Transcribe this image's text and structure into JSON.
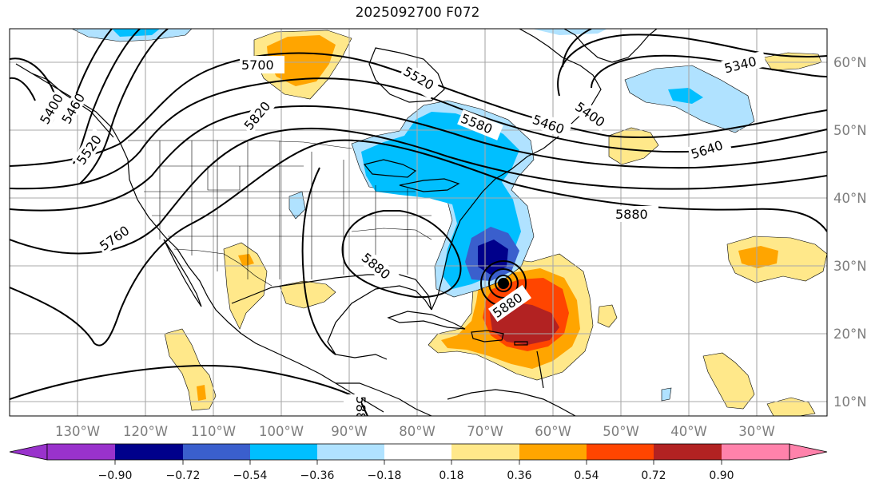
{
  "title": "2025092700 F072",
  "map": {
    "lon_labels": [
      "130°W",
      "120°W",
      "110°W",
      "100°W",
      "90°W",
      "80°W",
      "70°W",
      "60°W",
      "50°W",
      "40°W",
      "30°W"
    ],
    "lat_labels": [
      "60°N",
      "50°N",
      "40°N",
      "30°N",
      "20°N",
      "10°N"
    ],
    "contour_labels": [
      "5700",
      "5520",
      "5340",
      "5400",
      "5460",
      "5580",
      "5640",
      "5820",
      "5880",
      "5880",
      "5760",
      "5880",
      "5400",
      "5460",
      "5520",
      "588"
    ]
  },
  "colorbar": {
    "ticks": [
      "−0.90",
      "−0.72",
      "−0.54",
      "−0.36",
      "−0.18",
      "0.18",
      "0.36",
      "0.54",
      "0.72",
      "0.90"
    ],
    "colors": [
      "#9932cc",
      "#00008b",
      "#3a5fcd",
      "#00bfff",
      "#b0e2ff",
      "#ffffff",
      "#ffe88a",
      "#ffa500",
      "#ff4500",
      "#b22222",
      "#ff82ab"
    ]
  }
}
